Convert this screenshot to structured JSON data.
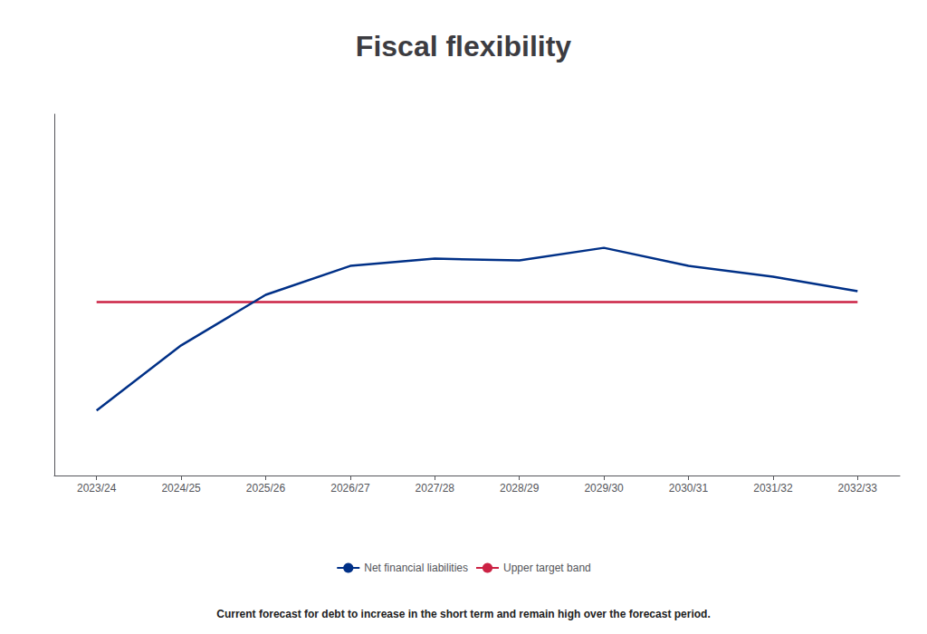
{
  "chart_data": {
    "type": "line",
    "title": "Fiscal flexibility",
    "categories": [
      "2023/24",
      "2024/25",
      "2025/26",
      "2026/27",
      "2027/28",
      "2028/29",
      "2029/30",
      "2030/31",
      "2031/32",
      "2032/33"
    ],
    "series": [
      {
        "name": "Net financial liabilities",
        "color": "#003087",
        "values": [
          18,
          36,
          50,
          58,
          60,
          59.5,
          63,
          58,
          55,
          51
        ]
      },
      {
        "name": "Upper target band",
        "color": "#cc2244",
        "values": [
          48,
          48,
          48,
          48,
          48,
          48,
          48,
          48,
          48,
          48
        ]
      }
    ],
    "ylim": [
      0,
      100
    ],
    "tick_labels": "x",
    "grid": false,
    "legend": "bottom",
    "annotations": [
      "Current forecast for debt to increase in the short term and remain high over the forecast period."
    ]
  }
}
